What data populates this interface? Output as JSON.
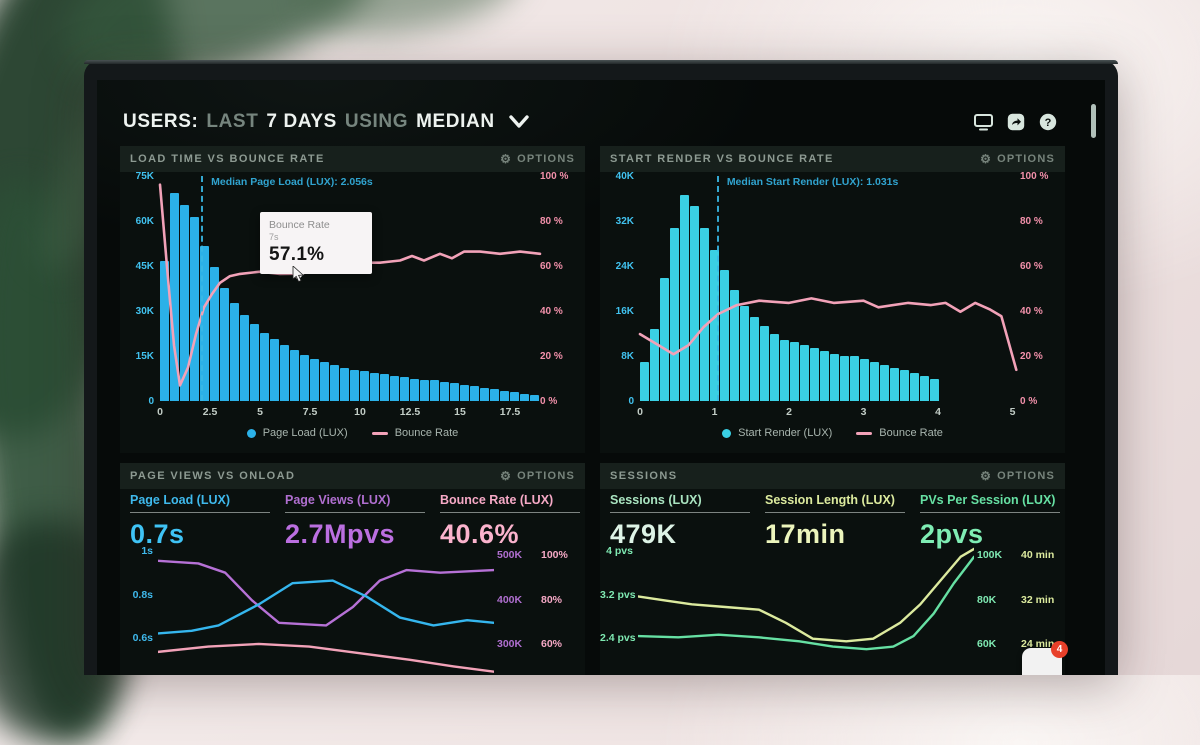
{
  "header": {
    "title_parts": [
      "USERS:",
      "LAST",
      "7 DAYS",
      "USING",
      "MEDIAN"
    ],
    "icons": [
      "display-icon",
      "share-icon",
      "help-icon"
    ]
  },
  "colors": {
    "bar_blue": "#2bb1e8",
    "bar_cyan": "#3ad0e4",
    "bounce_pink": "#f2a2b8",
    "axis_cyan": "#41c2ef",
    "axis_pink": "#f391ab",
    "purple": "#b671d6",
    "metric_pink": "#f8afc8",
    "mint": "#ddf3e6",
    "lime": "#e7f2b6",
    "green": "#7fedb4",
    "badge_red": "#e8402a"
  },
  "chat_badge": "4",
  "chart_data": [
    {
      "id": "load-time-vs-bounce-rate",
      "type": "bar+line",
      "title": "LOAD TIME VS BOUNCE RATE",
      "options_label": "OPTIONS",
      "y_left_max": 75,
      "left_axis": [
        "75K",
        "60K",
        "45K",
        "30K",
        "15K",
        "0"
      ],
      "right_axis": [
        "100 %",
        "80 %",
        "60 %",
        "40 %",
        "20 %",
        "0 %"
      ],
      "x_ticks": [
        "0",
        "2.5",
        "5",
        "7.5",
        "10",
        "12.5",
        "15",
        "17.5"
      ],
      "x_max": 19,
      "xlabel_unit": "seconds",
      "bar_series": {
        "name": "Page Load (LUX)",
        "color": "#2bb1e8",
        "bin_width_s": 0.5,
        "values_k": [
          47,
          70,
          66,
          62,
          52,
          45,
          38,
          33,
          29,
          26,
          23,
          21,
          19,
          17,
          15.5,
          14,
          13,
          12,
          11,
          10.5,
          10,
          9.5,
          9,
          8.5,
          8,
          7.5,
          7,
          7,
          6.5,
          6,
          5.5,
          5,
          4.5,
          4,
          3.5,
          3,
          2.5,
          2
        ]
      },
      "line_series": {
        "name": "Bounce Rate",
        "color": "#f2a2b8",
        "points": [
          [
            0,
            97
          ],
          [
            0.4,
            55
          ],
          [
            0.7,
            25
          ],
          [
            1.0,
            7
          ],
          [
            1.4,
            15
          ],
          [
            1.8,
            30
          ],
          [
            2.2,
            42
          ],
          [
            2.6,
            48
          ],
          [
            3.0,
            53
          ],
          [
            3.5,
            56
          ],
          [
            4.0,
            57
          ],
          [
            5,
            58
          ],
          [
            6,
            57
          ],
          [
            7,
            57.1
          ],
          [
            7.5,
            58
          ],
          [
            8,
            60
          ],
          [
            9,
            61
          ],
          [
            10,
            62
          ],
          [
            11,
            62
          ],
          [
            12,
            63
          ],
          [
            12.6,
            65
          ],
          [
            13.2,
            63
          ],
          [
            14,
            66
          ],
          [
            14.6,
            64
          ],
          [
            15.2,
            67
          ],
          [
            16,
            67
          ],
          [
            17,
            66
          ],
          [
            18,
            67
          ],
          [
            19,
            66
          ]
        ]
      },
      "median": {
        "label": "Median Page Load (LUX): 2.056s",
        "x": 2.056
      },
      "tooltip": {
        "title": "Bounce Rate",
        "sub": "7s",
        "value": "57.1%"
      },
      "legend": [
        {
          "label": "Page Load (LUX)"
        },
        {
          "label": "Bounce Rate"
        }
      ]
    },
    {
      "id": "start-render-vs-bounce-rate",
      "type": "bar+line",
      "title": "START RENDER VS BOUNCE RATE",
      "options_label": "OPTIONS",
      "y_left_max": 40,
      "left_axis": [
        "40K",
        "32K",
        "24K",
        "16K",
        "8K",
        "0"
      ],
      "right_axis": [
        "100 %",
        "80 %",
        "60 %",
        "40 %",
        "20 %",
        "0 %"
      ],
      "x_ticks": [
        "0",
        "1",
        "2",
        "3",
        "4",
        "5"
      ],
      "x_max": 5.1,
      "xlabel_unit": "seconds",
      "bar_series": {
        "name": "Start Render (LUX)",
        "color": "#3ad0e4",
        "bin_width_s": 0.17,
        "values_k": [
          7,
          13,
          22,
          31,
          37,
          35,
          31,
          27,
          23.5,
          20,
          17,
          15,
          13.5,
          12,
          11,
          10.5,
          10,
          9.5,
          9,
          8.5,
          8,
          8,
          7.5,
          7,
          6.5,
          6,
          5.5,
          5,
          4.5,
          4
        ]
      },
      "line_series": {
        "name": "Bounce Rate",
        "color": "#f2a2b8",
        "points": [
          [
            0,
            30
          ],
          [
            0.25,
            25
          ],
          [
            0.45,
            21
          ],
          [
            0.65,
            25
          ],
          [
            0.85,
            33
          ],
          [
            1.05,
            39
          ],
          [
            1.3,
            43
          ],
          [
            1.6,
            45
          ],
          [
            2.0,
            44
          ],
          [
            2.3,
            46
          ],
          [
            2.6,
            44
          ],
          [
            3.0,
            45
          ],
          [
            3.2,
            42
          ],
          [
            3.6,
            44
          ],
          [
            3.9,
            43
          ],
          [
            4.1,
            44
          ],
          [
            4.3,
            40
          ],
          [
            4.5,
            44
          ],
          [
            4.7,
            41
          ],
          [
            4.85,
            38
          ],
          [
            5.05,
            14
          ]
        ]
      },
      "median": {
        "label": "Median Start Render (LUX): 1.031s",
        "x": 1.031
      },
      "legend": [
        {
          "label": "Start Render (LUX)"
        },
        {
          "label": "Bounce Rate"
        }
      ]
    },
    {
      "id": "page-views-vs-onload",
      "type": "line",
      "title": "PAGE VIEWS VS ONLOAD",
      "options_label": "OPTIONS",
      "metrics": [
        {
          "label": "Page Load (LUX)",
          "value": "0.7s",
          "label_color": "#3fb9ec",
          "value_color": "#3fc3f5"
        },
        {
          "label": "Page Views (LUX)",
          "value": "2.7Mpvs",
          "label_color": "#b06fd0",
          "value_color": "#bb6fe0"
        },
        {
          "label": "Bounce Rate (LUX)",
          "value": "40.6%",
          "label_color": "#f6a9c6",
          "value_color": "#fbb3cd"
        }
      ],
      "left_axis": [
        "1s",
        "0.8s",
        "0.6s"
      ],
      "right_axis_k": [
        "500K",
        "400K",
        "300K"
      ],
      "right_axis_pct": [
        "100%",
        "80%",
        "60%"
      ],
      "axis_colors": {
        "left": "#3fb9ec",
        "k": "#b06fd0",
        "pct": "#f6a9c6"
      },
      "lines": [
        {
          "name": "Page Views (LUX)",
          "color": "#b671d6",
          "points": [
            [
              0,
              15
            ],
            [
              12,
              17
            ],
            [
              20,
              24
            ],
            [
              28,
              45
            ],
            [
              36,
              62
            ],
            [
              50,
              64
            ],
            [
              58,
              50
            ],
            [
              66,
              30
            ],
            [
              74,
              22
            ],
            [
              84,
              24
            ],
            [
              100,
              22
            ]
          ]
        },
        {
          "name": "Page Load (LUX)",
          "color": "#35b6ee",
          "points": [
            [
              0,
              70
            ],
            [
              10,
              68
            ],
            [
              18,
              64
            ],
            [
              30,
              48
            ],
            [
              40,
              32
            ],
            [
              52,
              30
            ],
            [
              62,
              42
            ],
            [
              72,
              58
            ],
            [
              82,
              64
            ],
            [
              92,
              60
            ],
            [
              100,
              62
            ]
          ]
        },
        {
          "name": "Bounce Rate (LUX)",
          "color": "#f2a2b8",
          "points": [
            [
              0,
              84
            ],
            [
              15,
              80
            ],
            [
              30,
              78
            ],
            [
              45,
              80
            ],
            [
              60,
              85
            ],
            [
              75,
              90
            ],
            [
              88,
              95
            ],
            [
              100,
              99
            ]
          ]
        }
      ]
    },
    {
      "id": "sessions",
      "type": "line",
      "title": "SESSIONS",
      "options_label": "OPTIONS",
      "metrics": [
        {
          "label": "Sessions (LUX)",
          "value": "479K",
          "label_color": "#a9e3c0",
          "value_color": "#ddf3e6"
        },
        {
          "label": "Session Length (LUX)",
          "value": "17min",
          "label_color": "#dcea9e",
          "value_color": "#ecf5bc"
        },
        {
          "label": "PVs Per Session (LUX)",
          "value": "2pvs",
          "label_color": "#66e0a3",
          "value_color": "#7fedb4"
        }
      ],
      "left_axis": [
        "4 pvs",
        "3.2 pvs",
        "2.4 pvs"
      ],
      "right_axis_k": [
        "100K",
        "80K",
        "60K"
      ],
      "right_axis_min": [
        "40 min",
        "32 min",
        "24 min"
      ],
      "axis_colors": {
        "left": "#7fe9b2",
        "k": "#7fe9b2",
        "min": "#dcea9e"
      },
      "lines": [
        {
          "name": "Session Length (LUX)",
          "color": "#dcea9e",
          "points": [
            [
              0,
              42
            ],
            [
              8,
              45
            ],
            [
              16,
              48
            ],
            [
              26,
              50
            ],
            [
              36,
              52
            ],
            [
              44,
              62
            ],
            [
              52,
              74
            ],
            [
              62,
              76
            ],
            [
              70,
              74
            ],
            [
              78,
              62
            ],
            [
              84,
              48
            ],
            [
              90,
              30
            ],
            [
              96,
              12
            ],
            [
              100,
              6
            ]
          ]
        },
        {
          "name": "PVs Per Session (LUX)",
          "color": "#66e0a3",
          "points": [
            [
              0,
              72
            ],
            [
              12,
              73
            ],
            [
              24,
              71
            ],
            [
              36,
              73
            ],
            [
              48,
              76
            ],
            [
              58,
              80
            ],
            [
              68,
              82
            ],
            [
              76,
              80
            ],
            [
              82,
              72
            ],
            [
              88,
              55
            ],
            [
              94,
              32
            ],
            [
              100,
              12
            ]
          ]
        }
      ]
    }
  ]
}
